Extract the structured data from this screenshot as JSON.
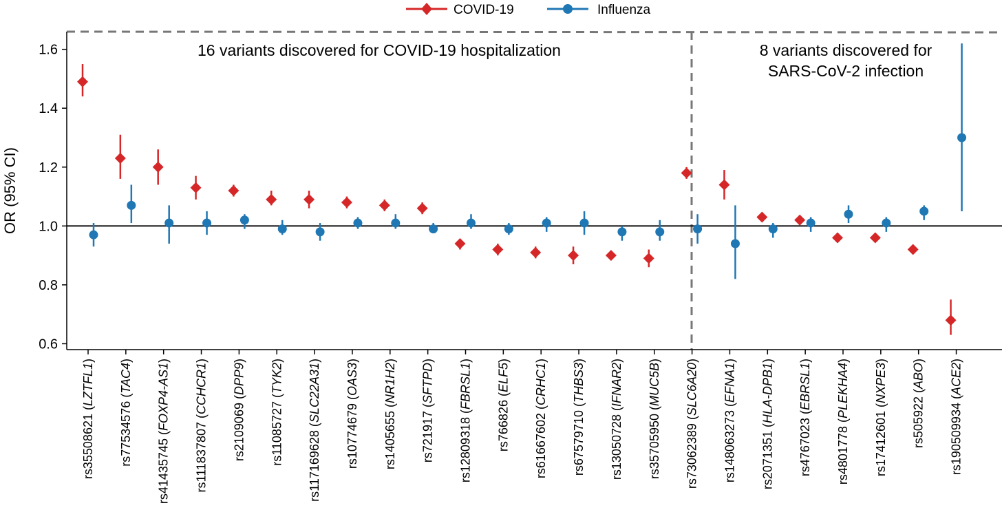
{
  "chart_data": {
    "type": "scatter",
    "ylabel": "OR (95% CI)",
    "ylim": [
      0.58,
      1.66
    ],
    "yticks": [
      0.6,
      0.8,
      1.0,
      1.2,
      1.4,
      1.6
    ],
    "ytick_labels": [
      "0.6",
      "0.8",
      "1.0",
      "1.2",
      "1.4",
      "1.6"
    ],
    "reference_line": 1.0,
    "grid": false,
    "legend": {
      "position": "top-center"
    },
    "panels": [
      {
        "title_lines": [
          "16 variants discovered for COVID-19 hospitalization"
        ],
        "variant_count": 16
      },
      {
        "title_lines": [
          "8 variants discovered for",
          "SARS-CoV-2 infection"
        ],
        "variant_count": 8
      }
    ],
    "categories": [
      {
        "rsid": "rs35508621",
        "gene": "LZTFL1"
      },
      {
        "rsid": "rs77534576",
        "gene": "TAC4"
      },
      {
        "rsid": "rs41435745",
        "gene": "FOXP4-AS1"
      },
      {
        "rsid": "rs111837807",
        "gene": "CCHCR1"
      },
      {
        "rsid": "rs2109069",
        "gene": "DPP9"
      },
      {
        "rsid": "rs11085727",
        "gene": "TYK2"
      },
      {
        "rsid": "rs117169628",
        "gene": "SLC22A31"
      },
      {
        "rsid": "rs10774679",
        "gene": "OAS3"
      },
      {
        "rsid": "rs1405655",
        "gene": "NR1H2"
      },
      {
        "rsid": "rs721917",
        "gene": "SFTPD"
      },
      {
        "rsid": "rs12809318",
        "gene": "FBRSL1"
      },
      {
        "rsid": "rs766826",
        "gene": "ELF5"
      },
      {
        "rsid": "rs61667602",
        "gene": "CRHC1"
      },
      {
        "rsid": "rs67579710",
        "gene": "THBS3"
      },
      {
        "rsid": "rs13050728",
        "gene": "IFNAR2"
      },
      {
        "rsid": "rs35705950",
        "gene": "MUC5B"
      },
      {
        "rsid": "rs73062389",
        "gene": "SLC6A20"
      },
      {
        "rsid": "rs148063273",
        "gene": "EFNA1"
      },
      {
        "rsid": "rs2071351",
        "gene": "HLA-DPB1"
      },
      {
        "rsid": "rs4767023",
        "gene": "EBRSL1"
      },
      {
        "rsid": "rs4801778",
        "gene": "PLEKHA4"
      },
      {
        "rsid": "rs17412601",
        "gene": "NXPE3"
      },
      {
        "rsid": "rs505922",
        "gene": "ABO"
      },
      {
        "rsid": "rs190509934",
        "gene": "ACE2"
      }
    ],
    "series": [
      {
        "name": "COVID-19",
        "color": "#d62728",
        "marker": "diamond",
        "points": [
          {
            "or": 1.49,
            "lo": 1.44,
            "hi": 1.55
          },
          {
            "or": 1.23,
            "lo": 1.16,
            "hi": 1.31
          },
          {
            "or": 1.2,
            "lo": 1.14,
            "hi": 1.26
          },
          {
            "or": 1.13,
            "lo": 1.09,
            "hi": 1.17
          },
          {
            "or": 1.12,
            "lo": 1.1,
            "hi": 1.14
          },
          {
            "or": 1.09,
            "lo": 1.07,
            "hi": 1.12
          },
          {
            "or": 1.09,
            "lo": 1.06,
            "hi": 1.12
          },
          {
            "or": 1.08,
            "lo": 1.06,
            "hi": 1.1
          },
          {
            "or": 1.07,
            "lo": 1.05,
            "hi": 1.09
          },
          {
            "or": 1.06,
            "lo": 1.04,
            "hi": 1.08
          },
          {
            "or": 0.94,
            "lo": 0.92,
            "hi": 0.95
          },
          {
            "or": 0.92,
            "lo": 0.9,
            "hi": 0.94
          },
          {
            "or": 0.91,
            "lo": 0.89,
            "hi": 0.93
          },
          {
            "or": 0.9,
            "lo": 0.87,
            "hi": 0.93
          },
          {
            "or": 0.9,
            "lo": 0.89,
            "hi": 0.91
          },
          {
            "or": 0.89,
            "lo": 0.86,
            "hi": 0.92
          },
          {
            "or": 1.18,
            "lo": 1.16,
            "hi": 1.2
          },
          {
            "or": 1.14,
            "lo": 1.09,
            "hi": 1.19
          },
          {
            "or": 1.03,
            "lo": 1.02,
            "hi": 1.04
          },
          {
            "or": 1.02,
            "lo": 1.01,
            "hi": 1.03
          },
          {
            "or": 0.96,
            "lo": 0.95,
            "hi": 0.97
          },
          {
            "or": 0.96,
            "lo": 0.95,
            "hi": 0.97
          },
          {
            "or": 0.92,
            "lo": 0.91,
            "hi": 0.93
          },
          {
            "or": 0.68,
            "lo": 0.63,
            "hi": 0.75
          }
        ]
      },
      {
        "name": "Influenza",
        "color": "#1f77b4",
        "marker": "circle",
        "points": [
          {
            "or": 0.97,
            "lo": 0.93,
            "hi": 1.01
          },
          {
            "or": 1.07,
            "lo": 1.01,
            "hi": 1.14
          },
          {
            "or": 1.01,
            "lo": 0.94,
            "hi": 1.07
          },
          {
            "or": 1.01,
            "lo": 0.97,
            "hi": 1.05
          },
          {
            "or": 1.02,
            "lo": 0.99,
            "hi": 1.04
          },
          {
            "or": 0.99,
            "lo": 0.97,
            "hi": 1.02
          },
          {
            "or": 0.98,
            "lo": 0.95,
            "hi": 1.01
          },
          {
            "or": 1.01,
            "lo": 0.99,
            "hi": 1.03
          },
          {
            "or": 1.01,
            "lo": 0.99,
            "hi": 1.04
          },
          {
            "or": 0.99,
            "lo": 0.98,
            "hi": 1.01
          },
          {
            "or": 1.01,
            "lo": 0.99,
            "hi": 1.04
          },
          {
            "or": 0.99,
            "lo": 0.97,
            "hi": 1.01
          },
          {
            "or": 1.01,
            "lo": 0.98,
            "hi": 1.03
          },
          {
            "or": 1.01,
            "lo": 0.97,
            "hi": 1.05
          },
          {
            "or": 0.98,
            "lo": 0.95,
            "hi": 1.0
          },
          {
            "or": 0.98,
            "lo": 0.95,
            "hi": 1.02
          },
          {
            "or": 0.99,
            "lo": 0.94,
            "hi": 1.04
          },
          {
            "or": 0.94,
            "lo": 0.82,
            "hi": 1.07
          },
          {
            "or": 0.99,
            "lo": 0.96,
            "hi": 1.01
          },
          {
            "or": 1.01,
            "lo": 0.98,
            "hi": 1.03
          },
          {
            "or": 1.04,
            "lo": 1.01,
            "hi": 1.07
          },
          {
            "or": 1.01,
            "lo": 0.98,
            "hi": 1.03
          },
          {
            "or": 1.05,
            "lo": 1.02,
            "hi": 1.07
          },
          {
            "or": 1.3,
            "lo": 1.05,
            "hi": 1.62
          }
        ]
      }
    ]
  }
}
